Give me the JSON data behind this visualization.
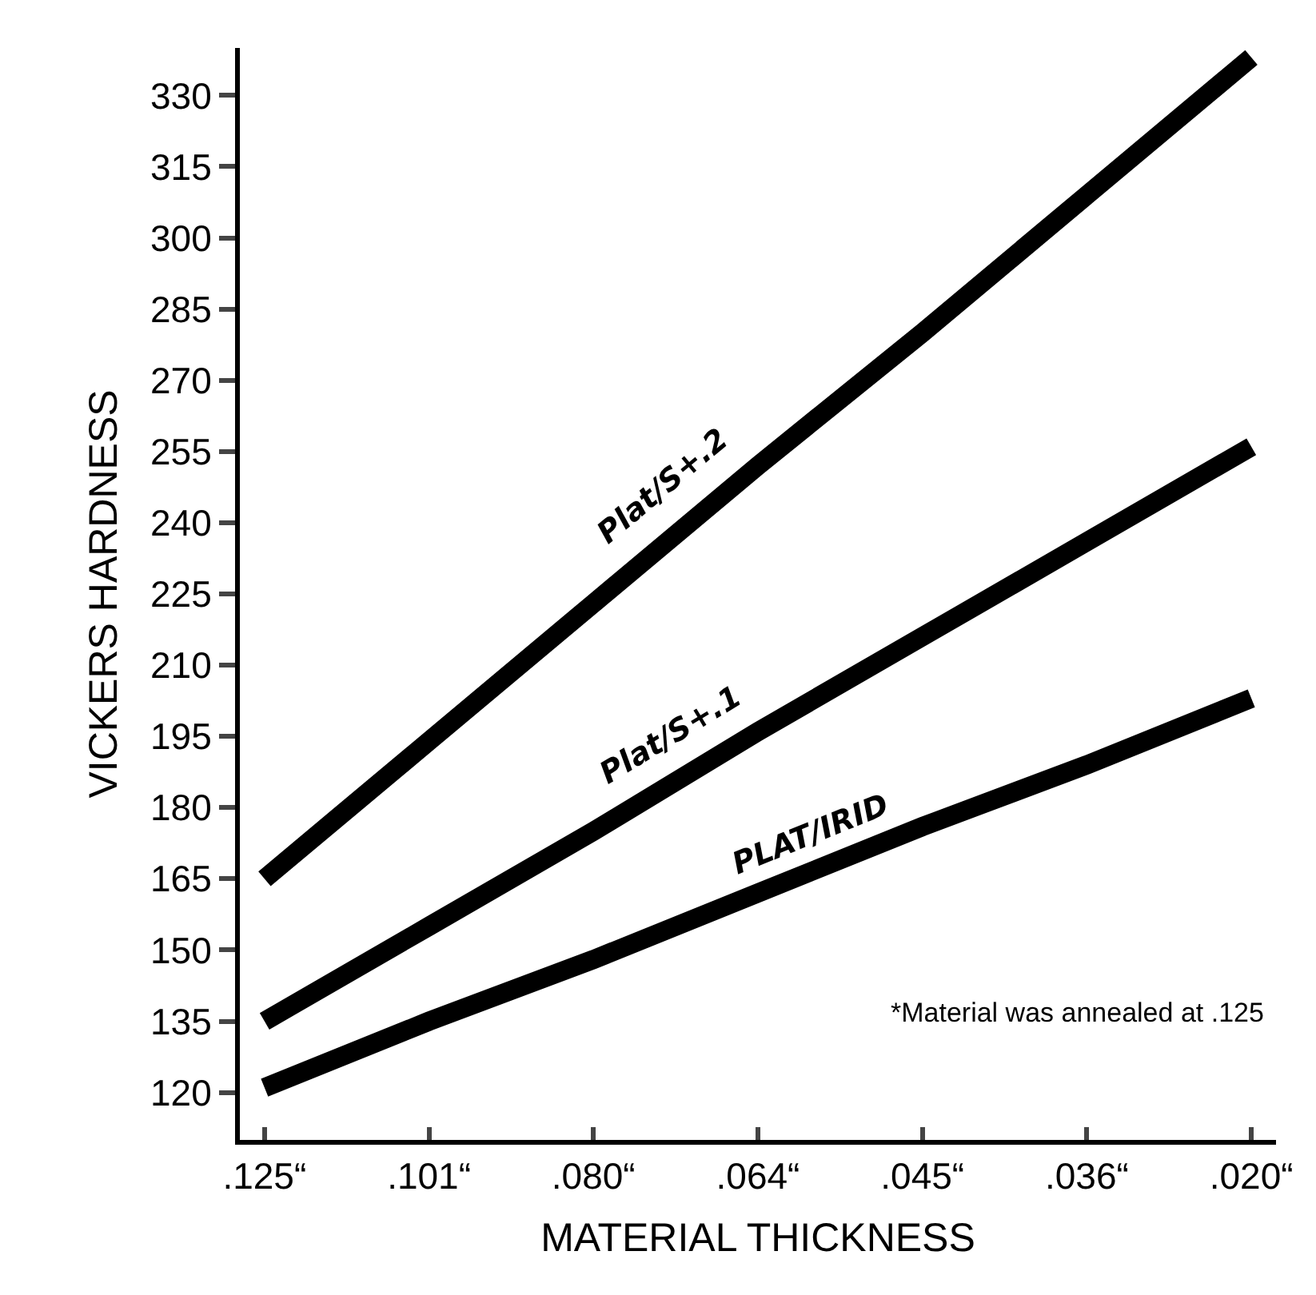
{
  "chart_data": {
    "type": "line",
    "xlabel": "MATERIAL THICKNESS",
    "ylabel": "VICKERS HARDNESS",
    "categories": [
      ".125“",
      ".101“",
      ".080“",
      ".064“",
      ".045“",
      ".036“",
      ".020“"
    ],
    "series": [
      {
        "name": "Plat/S+.2",
        "color": "#000000",
        "values": [
          165,
          194,
          223,
          252,
          280,
          309,
          338
        ]
      },
      {
        "name": "Plat/S+.1",
        "color": "#000000",
        "values": [
          135,
          155,
          175,
          196,
          216,
          236,
          256
        ]
      },
      {
        "name": "PLAT/IRID",
        "color": "#000000",
        "values": [
          121,
          135,
          148,
          162,
          176,
          189,
          203
        ]
      }
    ],
    "ylim": [
      110,
      340
    ],
    "yticks": [
      120,
      135,
      150,
      165,
      180,
      195,
      210,
      225,
      240,
      255,
      270,
      285,
      300,
      315,
      330
    ],
    "annotations": [
      "*Material was annealed at .125"
    ],
    "grid": false,
    "legend": false,
    "marker": "none",
    "line_style": "solid"
  }
}
